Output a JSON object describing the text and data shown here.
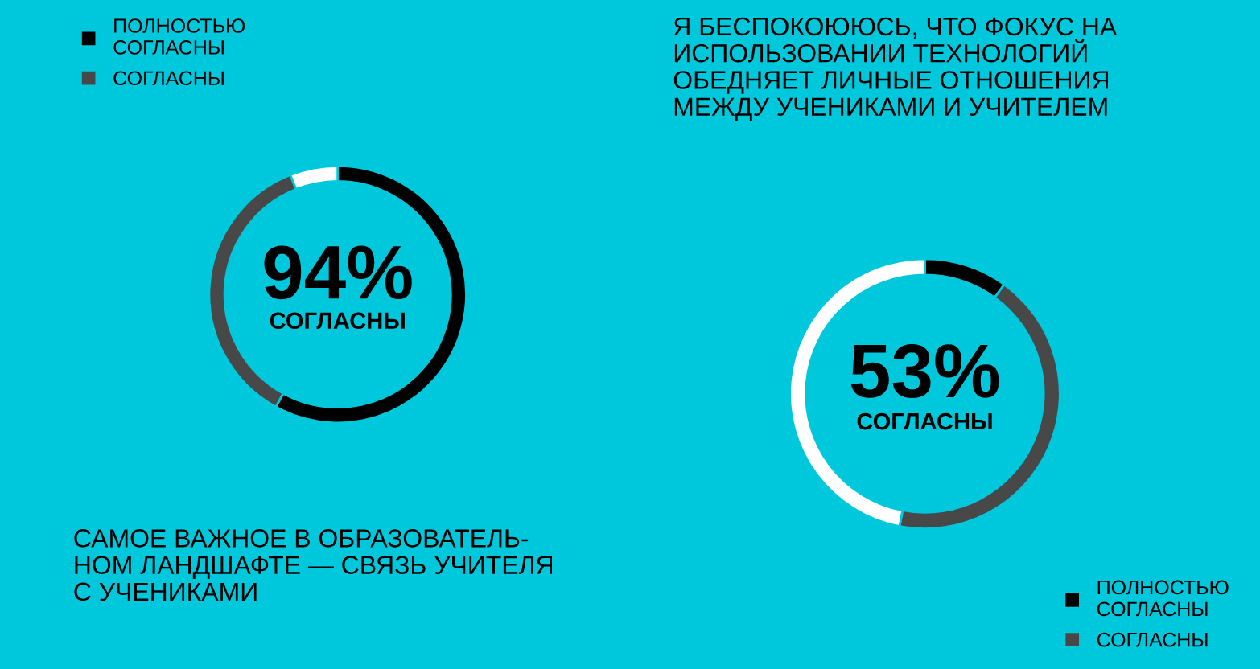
{
  "chart_data": [
    {
      "type": "donut",
      "title": "САМОЕ ВАЖНОЕ В ОБРАЗОВАТЕЛЬ-\nНОМ ЛАНДШАФТЕ — СВЯЗЬ УЧИТЕЛЯ\nС УЧЕНИКАМИ",
      "categories": [
        "ПОЛНОСТЬЮ\nСОГЛАСНЫ",
        "СОГЛАСНЫ",
        null
      ],
      "values": [
        58,
        36,
        6
      ],
      "colors": [
        "#000000",
        "#484848",
        "#ffffff"
      ],
      "annotations": [
        "94%",
        "СОГЛАСНЫ"
      ],
      "legend": "top left"
    },
    {
      "type": "donut",
      "title": "Я БЕСПОКОЮЮСЬ, ЧТО ФОКУС НА\nИСПОЛЬЗОВАНИИ ТЕХНОЛОГИЙ\nОБЕДНЯЕТ ЛИЧНЫЕ ОТНОШЕНИЯ\nМЕЖДУ УЧЕНИКАМИ И УЧИТЕЛЕМ",
      "categories": [
        "ПОЛНОСТЬЮ\nСОГЛАСНЫ",
        "СОГЛАСНЫ",
        null
      ],
      "values": [
        10,
        43,
        47
      ],
      "colors": [
        "#000000",
        "#484848",
        "#ffffff"
      ],
      "annotations": [
        "53%",
        "СОГЛАСНЫ"
      ],
      "legend": "bottom right"
    }
  ]
}
